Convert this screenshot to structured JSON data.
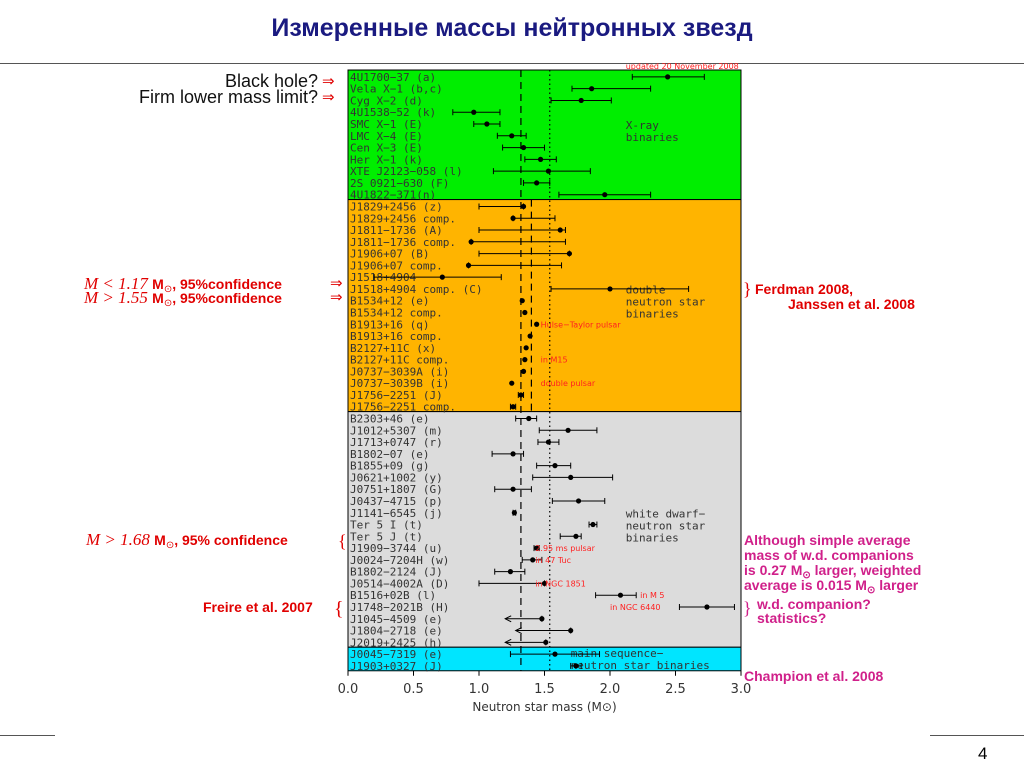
{
  "slide": {
    "title": "Измеренные массы нейтронных звезд",
    "page_number": "4"
  },
  "chart_data": {
    "type": "scatter",
    "xlabel": "Neutron star mass (M",
    "xlabel_symbol": "⊙",
    "xlabel_close": ")",
    "xlim": [
      0.0,
      3.0
    ],
    "xticks": [
      "0.0",
      "0.5",
      "1.0",
      "1.5",
      "2.0",
      "2.5",
      "3.0"
    ],
    "note": "updated 20 November 2008",
    "reference_lines": [
      {
        "style": "dashed",
        "x": 1.32
      },
      {
        "style": "dotted",
        "x": 1.54
      },
      {
        "style": "dashed",
        "x": 1.4
      }
    ],
    "groups": [
      {
        "key": "xray",
        "label": [
          "X-ray",
          "binaries"
        ],
        "color": "#00ee00",
        "objects": [
          {
            "name": "4U1700−37 (a)",
            "mass": 2.44,
            "lo": 2.17,
            "hi": 2.72
          },
          {
            "name": "Vela X−1 (b,c)",
            "mass": 1.86,
            "lo": 1.71,
            "hi": 2.31
          },
          {
            "name": "Cyg X−2 (d)",
            "mass": 1.78,
            "lo": 1.55,
            "hi": 2.01
          },
          {
            "name": "4U1538−52 (k)",
            "mass": 0.96,
            "lo": 0.8,
            "hi": 1.16
          },
          {
            "name": "SMC X−1 (E)",
            "mass": 1.06,
            "lo": 0.96,
            "hi": 1.16
          },
          {
            "name": "LMC X−4 (E)",
            "mass": 1.25,
            "lo": 1.14,
            "hi": 1.36
          },
          {
            "name": "Cen X−3 (E)",
            "mass": 1.34,
            "lo": 1.18,
            "hi": 1.5
          },
          {
            "name": "Her X−1 (k)",
            "mass": 1.47,
            "lo": 1.35,
            "hi": 1.59
          },
          {
            "name": "XTE J2123−058 (l)",
            "mass": 1.53,
            "lo": 1.11,
            "hi": 1.85
          },
          {
            "name": "2S 0921−630 (F)",
            "mass": 1.44,
            "lo": 1.34,
            "hi": 1.54
          },
          {
            "name": "4U1822−371(n)",
            "mass": 1.96,
            "lo": 1.61,
            "hi": 2.31
          }
        ]
      },
      {
        "key": "dns",
        "label": [
          "double",
          "neutron star",
          "binaries"
        ],
        "color": "#ffb400",
        "objects": [
          {
            "name": "J1829+2456 (z)",
            "mass": 1.34,
            "lo": 1.0,
            "hi": 1.34
          },
          {
            "name": "J1829+2456 comp.",
            "mass": 1.26,
            "lo": 1.26,
            "hi": 1.58
          },
          {
            "name": "J1811−1736 (A)",
            "mass": 1.62,
            "lo": 1.0,
            "hi": 1.66
          },
          {
            "name": "J1811−1736 comp.",
            "mass": 0.94,
            "lo": 0.94,
            "hi": 1.66
          },
          {
            "name": "J1906+07 (B)",
            "mass": 1.69,
            "lo": 1.0,
            "hi": 1.69
          },
          {
            "name": "J1906+07 comp.",
            "mass": 0.92,
            "lo": 0.92,
            "hi": 1.63
          },
          {
            "name": "J1518+4904",
            "mass": 0.72,
            "lo": 0.2,
            "hi": 1.17
          },
          {
            "name": "J1518+4904 comp. (C)",
            "mass": 2.0,
            "lo": 1.55,
            "hi": 2.6
          },
          {
            "name": "B1534+12 (e)",
            "mass": 1.33,
            "lo": 1.33,
            "hi": 1.33
          },
          {
            "name": "B1534+12 comp.",
            "mass": 1.35,
            "lo": 1.35,
            "hi": 1.35
          },
          {
            "name": "B1913+16 (q)",
            "mass": 1.44,
            "lo": 1.44,
            "hi": 1.44
          },
          {
            "name": "B1913+16 comp.",
            "mass": 1.39,
            "lo": 1.39,
            "hi": 1.39
          },
          {
            "name": "B2127+11C (x)",
            "mass": 1.36,
            "lo": 1.36,
            "hi": 1.36
          },
          {
            "name": "B2127+11C comp.",
            "mass": 1.35,
            "lo": 1.35,
            "hi": 1.35
          },
          {
            "name": "J0737−3039A (i)",
            "mass": 1.34,
            "lo": 1.34,
            "hi": 1.34
          },
          {
            "name": "J0737−3039B (i)",
            "mass": 1.25,
            "lo": 1.25,
            "hi": 1.25
          },
          {
            "name": "J1756−2251 (J)",
            "mass": 1.32,
            "lo": 1.3,
            "hi": 1.34
          },
          {
            "name": "J1756−2251 comp.",
            "mass": 1.26,
            "lo": 1.24,
            "hi": 1.28
          }
        ]
      },
      {
        "key": "wd",
        "label": [
          "white dwarf−",
          "neutron star",
          "binaries"
        ],
        "color": "#dcdcdc",
        "objects": [
          {
            "name": "B2303+46 (e)",
            "mass": 1.38,
            "lo": 1.28,
            "hi": 1.44
          },
          {
            "name": "J1012+5307 (m)",
            "mass": 1.68,
            "lo": 1.46,
            "hi": 1.9
          },
          {
            "name": "J1713+0747 (r)",
            "mass": 1.53,
            "lo": 1.45,
            "hi": 1.61
          },
          {
            "name": "B1802−07 (e)",
            "mass": 1.26,
            "lo": 1.1,
            "hi": 1.34
          },
          {
            "name": "B1855+09 (g)",
            "mass": 1.58,
            "lo": 1.44,
            "hi": 1.7
          },
          {
            "name": "J0621+1002 (y)",
            "mass": 1.7,
            "lo": 1.41,
            "hi": 2.02
          },
          {
            "name": "J0751+1807 (G)",
            "mass": 1.26,
            "lo": 1.12,
            "hi": 1.4
          },
          {
            "name": "J0437−4715 (p)",
            "mass": 1.76,
            "lo": 1.56,
            "hi": 1.96
          },
          {
            "name": "J1141−6545 (j)",
            "mass": 1.27,
            "lo": 1.26,
            "hi": 1.28
          },
          {
            "name": "Ter 5 I (t)",
            "mass": 1.87,
            "lo": 1.84,
            "hi": 1.9
          },
          {
            "name": "Ter 5 J (t)",
            "mass": 1.74,
            "lo": 1.62,
            "hi": 1.78
          },
          {
            "name": "J1909−3744 (u)",
            "mass": 1.44,
            "lo": 1.42,
            "hi": 1.46
          },
          {
            "name": "J0024−7204H (w)",
            "mass": 1.41,
            "lo": 1.33,
            "hi": 1.48
          },
          {
            "name": "B1802−2124 (J)",
            "mass": 1.24,
            "lo": 1.12,
            "hi": 1.35
          },
          {
            "name": "J0514−4002A (D)",
            "mass": 1.5,
            "lo": 1.0,
            "hi": 1.5
          },
          {
            "name": "B1516+02B (l)",
            "mass": 2.08,
            "lo": 1.89,
            "hi": 2.2
          },
          {
            "name": "J1748−2021B (H)",
            "mass": 2.74,
            "lo": 2.53,
            "hi": 2.95
          },
          {
            "name": "J1045−4509 (e)",
            "mass": 1.48,
            "lo": 1.2,
            "hi": 1.48,
            "arrow": true
          },
          {
            "name": "J1804−2718 (e)",
            "mass": 1.7,
            "lo": 1.28,
            "hi": 1.7,
            "arrow": true
          },
          {
            "name": "J2019+2425 (h)",
            "mass": 1.51,
            "lo": 1.2,
            "hi": 1.51,
            "arrow": true
          }
        ]
      },
      {
        "key": "ms",
        "label": [
          "main sequence−",
          "neutron star binaries"
        ],
        "color": "#00e5ff",
        "objects": [
          {
            "name": "J0045−7319 (e)",
            "mass": 1.58,
            "lo": 1.24,
            "hi": 1.92
          },
          {
            "name": "J1903+0327 (J)",
            "mass": 1.74,
            "lo": 1.7,
            "hi": 1.78
          }
        ]
      }
    ],
    "inset_notes": [
      {
        "text": "Hulse−Taylor pulsar",
        "group": 1,
        "row": 10
      },
      {
        "text": "in M15",
        "group": 1,
        "row": 13
      },
      {
        "text": "double pulsar",
        "group": 1,
        "row": 15
      },
      {
        "text": "2.95 ms pulsar",
        "group": 2,
        "row": 11
      },
      {
        "text": "in 47 Tuc",
        "group": 2,
        "row": 12
      },
      {
        "text": "in NGC 1851",
        "group": 2,
        "row": 14
      },
      {
        "text": "in M 5",
        "group": 2,
        "row": 15
      },
      {
        "text": "in NGC 6440",
        "group": 2,
        "row": 16
      }
    ]
  },
  "annotations": {
    "black_hole": "Black hole?",
    "firm_lower": "Firm lower mass limit?",
    "m_lt_prefix": "M < 1.17",
    "m_gt_prefix": "M > 1.55",
    "msun_label": "M",
    "sun_symbol": "⊙",
    "conf_suffix": ", 95%confidence",
    "m_168_prefix": "M > 1.68",
    "conf_suffix_2": ", 95% confidence",
    "ferdman_1": "Ferdman 2008,",
    "ferdman_2": "Janssen et al. 2008",
    "freire": "Freire et al. 2007",
    "although_1": "Although simple average",
    "although_2": "mass of w.d. companions",
    "although_3a": "is 0.27 M",
    "although_3b": " larger, weighted",
    "although_4a": "average is 0.015 M",
    "although_4b": " larger",
    "wd_companion_1": "w.d. companion?",
    "wd_companion_2": "statistics?",
    "champion": "Champion et al. 2008",
    "arrow_glyph": "⇒",
    "brace_glyph": "{",
    "close_brace_glyph": "}"
  },
  "colors": {
    "title": "#1a1a80",
    "annotation_red": "#e00000",
    "annotation_magenta": "#d0208a",
    "axis_text": "#333333",
    "note_red": "#ff2020"
  }
}
